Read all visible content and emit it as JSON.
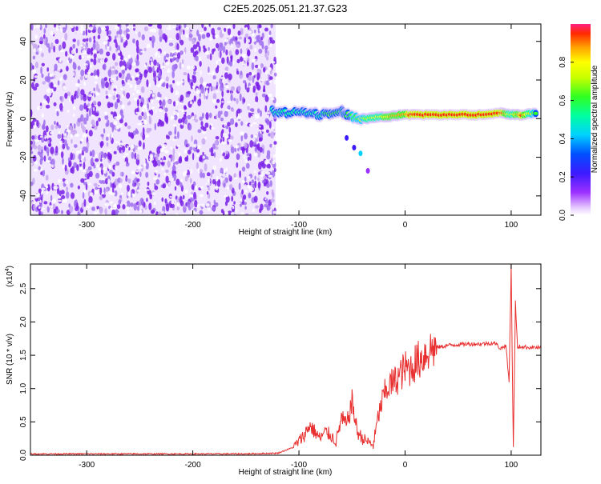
{
  "title": "C2E5.2025.051.21.37.G23",
  "colors": {
    "axis": "#000000",
    "snr_line": "#e83030",
    "noise_purple": "#7a20e8",
    "noise_light": "#c8a8f0"
  },
  "chart_data": [
    {
      "type": "heatmap",
      "title": "C2E5.2025.051.21.37.G23",
      "xlabel": "Height of straight line (km)",
      "ylabel": "Frequency (Hz)",
      "xlim": [
        -353,
        128
      ],
      "ylim": [
        -50,
        49
      ],
      "x_ticks": [
        -300,
        -200,
        -100,
        0,
        100
      ],
      "x_tick_labels": [
        "-300",
        "-200",
        "-100",
        "0",
        "100"
      ],
      "y_ticks": [
        -40,
        -20,
        0,
        20,
        40
      ],
      "y_tick_labels": [
        "-40",
        "-20",
        "0",
        "20",
        "40"
      ],
      "colorbar": {
        "label": "Normalized spectral amplitude",
        "range": [
          0,
          1
        ],
        "ticks": [
          0.0,
          0.2,
          0.4,
          0.6,
          0.8
        ],
        "tick_labels": [
          "0.0",
          "0.2",
          "0.4",
          "0.6",
          "0.8"
        ]
      },
      "noise_region": {
        "x_from": -353,
        "x_to": -122,
        "typical_amplitude": 0.1
      },
      "signal_track": [
        {
          "x": -125,
          "y": 4,
          "amplitude": 0.45
        },
        {
          "x": -115,
          "y": 3,
          "amplitude": 0.45
        },
        {
          "x": -100,
          "y": 3,
          "amplitude": 0.5
        },
        {
          "x": -90,
          "y": 3,
          "amplitude": 0.5
        },
        {
          "x": -80,
          "y": 2,
          "amplitude": 0.5
        },
        {
          "x": -70,
          "y": 3,
          "amplitude": 0.55
        },
        {
          "x": -60,
          "y": 4,
          "amplitude": 0.55
        },
        {
          "x": -55,
          "y": 2,
          "amplitude": 0.55
        },
        {
          "x": -45,
          "y": 0,
          "amplitude": 0.6
        },
        {
          "x": -35,
          "y": 0,
          "amplitude": 0.7
        },
        {
          "x": -25,
          "y": 1,
          "amplitude": 0.75
        },
        {
          "x": -15,
          "y": 1,
          "amplitude": 0.8
        },
        {
          "x": -5,
          "y": 2,
          "amplitude": 0.85
        },
        {
          "x": 10,
          "y": 2,
          "amplitude": 0.9
        },
        {
          "x": 30,
          "y": 2,
          "amplitude": 0.95
        },
        {
          "x": 50,
          "y": 2,
          "amplitude": 0.95
        },
        {
          "x": 70,
          "y": 2,
          "amplitude": 0.95
        },
        {
          "x": 90,
          "y": 3,
          "amplitude": 0.95
        },
        {
          "x": 100,
          "y": 2,
          "amplitude": 0.7
        },
        {
          "x": 110,
          "y": 2,
          "amplitude": 0.9
        },
        {
          "x": 125,
          "y": 3,
          "amplitude": 0.5
        }
      ],
      "secondary_track": [
        {
          "x": -55,
          "y": -10,
          "amplitude": 0.15
        },
        {
          "x": -48,
          "y": -15,
          "amplitude": 0.2
        },
        {
          "x": -42,
          "y": -18,
          "amplitude": 0.35
        },
        {
          "x": -35,
          "y": -27,
          "amplitude": 0.1
        }
      ]
    },
    {
      "type": "line",
      "xlabel": "Height of straight line (km)",
      "ylabel": "SNR (10 * v/v)",
      "y_multiplier_label": "(x10",
      "y_multiplier_exp": "4",
      "xlim": [
        -353,
        128
      ],
      "ylim": [
        0,
        2.87
      ],
      "x_ticks": [
        -300,
        -200,
        -100,
        0,
        100
      ],
      "x_tick_labels": [
        "-300",
        "-200",
        "-100",
        "0",
        "100"
      ],
      "y_ticks": [
        0.0,
        0.5,
        1.0,
        1.5,
        2.0,
        2.5
      ],
      "y_tick_labels": [
        "0.0",
        "0.5",
        "1.0",
        "1.5",
        "2.0",
        "2.5"
      ],
      "series": [
        {
          "x": [
            -353,
            -300,
            -250,
            -200,
            -150,
            -120,
            -105,
            -95,
            -90,
            -85,
            -80,
            -75,
            -70,
            -65,
            -60,
            -55,
            -50,
            -45,
            -40,
            -35,
            -30,
            -25,
            -20,
            -15,
            -10,
            -5,
            0,
            5,
            10,
            15,
            20,
            25,
            30,
            35,
            40,
            50,
            60,
            70,
            80,
            85,
            90,
            95,
            98,
            100,
            102,
            104,
            106,
            108,
            110,
            115,
            120,
            128
          ],
          "y": [
            0.02,
            0.02,
            0.02,
            0.02,
            0.02,
            0.03,
            0.12,
            0.3,
            0.45,
            0.35,
            0.25,
            0.35,
            0.3,
            0.2,
            0.55,
            0.45,
            0.8,
            0.35,
            0.25,
            0.2,
            0.15,
            0.6,
            0.9,
            1.05,
            1.1,
            1.2,
            1.3,
            1.3,
            1.4,
            1.45,
            1.55,
            1.6,
            1.62,
            1.63,
            1.65,
            1.66,
            1.67,
            1.67,
            1.68,
            1.68,
            1.6,
            1.65,
            1.1,
            2.85,
            0.1,
            2.3,
            1.6,
            1.63,
            1.63,
            1.62,
            1.62,
            1.61
          ]
        }
      ]
    }
  ]
}
